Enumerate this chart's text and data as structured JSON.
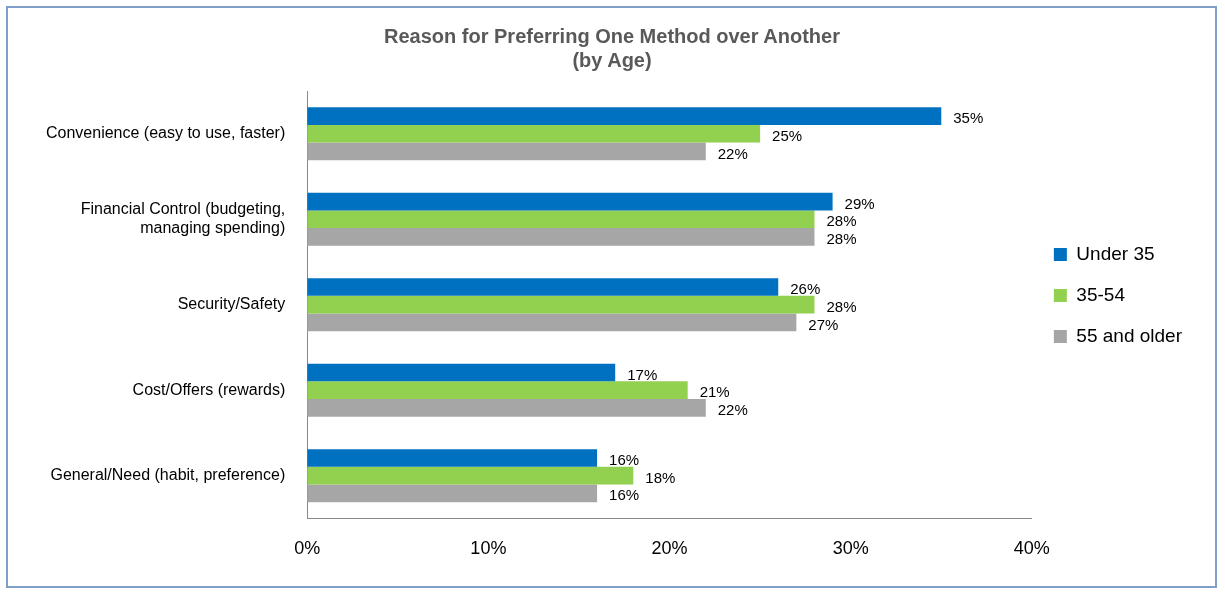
{
  "chart_data": {
    "type": "bar",
    "orientation": "horizontal",
    "title": [
      "Reason for Preferring One Method over Another",
      "(by Age)"
    ],
    "categories": [
      "Convenience (easy to use, faster)",
      "Financial Control (budgeting, managing spending)",
      "Security/Safety",
      "Cost/Offers (rewards)",
      "General/Need (habit, preference)"
    ],
    "series": [
      {
        "name": "Under 35",
        "color": "#0070c0",
        "values": [
          35,
          29,
          26,
          17,
          16
        ],
        "value_labels": [
          "35%",
          "29%",
          "26%",
          "17%",
          "16%"
        ]
      },
      {
        "name": "35-54",
        "color": "#92d050",
        "values": [
          25,
          28,
          28,
          21,
          18
        ],
        "value_labels": [
          "25%",
          "28%",
          "28%",
          "21%",
          "18%"
        ]
      },
      {
        "name": "55 and older",
        "color": "#a6a6a6",
        "values": [
          22,
          28,
          27,
          22,
          16
        ],
        "value_labels": [
          "22%",
          "28%",
          "27%",
          "22%",
          "16%"
        ]
      }
    ],
    "xlim": [
      0,
      40
    ],
    "xticks": [
      {
        "value": 0,
        "label": "0%"
      },
      {
        "value": 10,
        "label": "10%"
      },
      {
        "value": 20,
        "label": "20%"
      },
      {
        "value": 30,
        "label": "30%"
      },
      {
        "value": 40,
        "label": "40%"
      }
    ],
    "grid": false,
    "legend": "right"
  }
}
